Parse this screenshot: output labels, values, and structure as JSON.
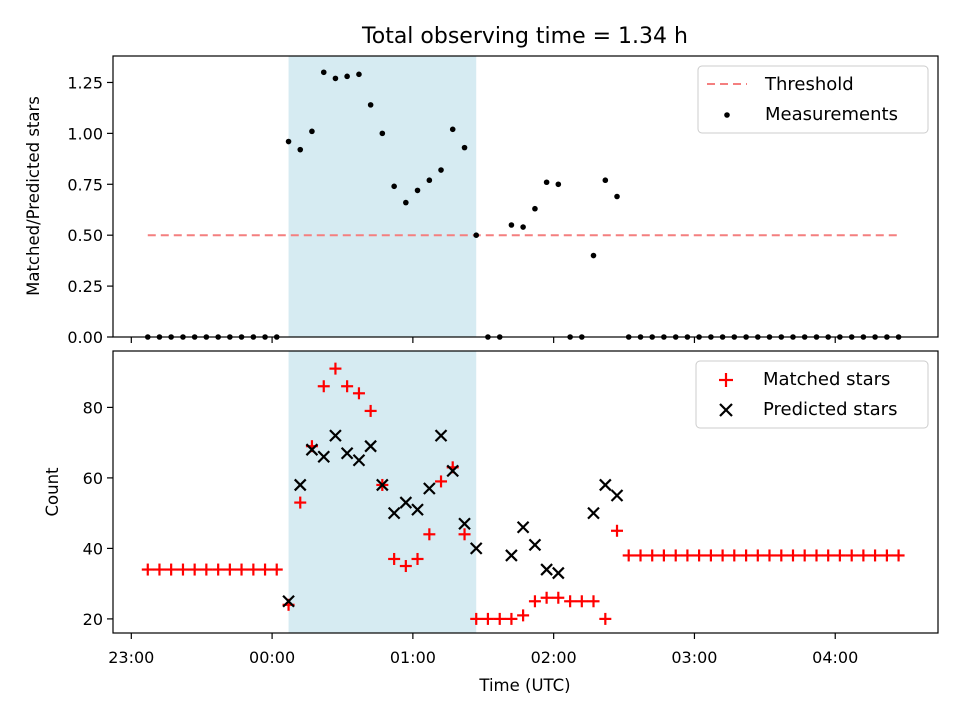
{
  "chart_data": {
    "title": "Total observing time = 1.34 h",
    "xlabel": "Time (UTC)",
    "x_ticks": [
      "23:00",
      "00:00",
      "01:00",
      "02:00",
      "03:00",
      "04:00"
    ],
    "x_tick_hours": [
      23,
      24,
      25,
      26,
      27,
      28
    ],
    "x_range_hours": [
      22.87,
      28.73
    ],
    "highlight_span_hours": [
      24.117,
      25.45
    ],
    "x_hours": [
      23.117,
      23.2,
      23.283,
      23.367,
      23.45,
      23.533,
      23.617,
      23.7,
      23.783,
      23.867,
      23.95,
      24.033,
      24.117,
      24.2,
      24.283,
      24.367,
      24.45,
      24.533,
      24.617,
      24.7,
      24.783,
      24.867,
      24.95,
      25.033,
      25.117,
      25.2,
      25.283,
      25.367,
      25.45,
      25.533,
      25.617,
      25.7,
      25.783,
      25.867,
      25.95,
      26.033,
      26.117,
      26.2,
      26.283,
      26.367,
      26.45,
      26.533,
      26.617,
      26.7,
      26.783,
      26.867,
      26.95,
      27.033,
      27.117,
      27.2,
      27.283,
      27.367,
      27.45,
      27.533,
      27.617,
      27.7,
      27.783,
      27.867,
      27.95,
      28.033,
      28.117,
      28.2,
      28.283,
      28.367,
      28.45
    ],
    "panels": [
      {
        "type": "scatter",
        "ylabel": "Matched/Predicted stars",
        "ylim": [
          0,
          1.38
        ],
        "y_ticks": [
          "0.00",
          "0.25",
          "0.50",
          "0.75",
          "1.00",
          "1.25"
        ],
        "y_tick_values": [
          0,
          0.25,
          0.5,
          0.75,
          1.0,
          1.25
        ],
        "legend_position": "top-right",
        "threshold": {
          "name": "Threshold",
          "value": 0.5,
          "color": "#f47f7f"
        },
        "series": [
          {
            "name": "Measurements",
            "color": "#000000",
            "values": [
              0,
              0,
              0,
              0,
              0,
              0,
              0,
              0,
              0,
              0,
              0,
              0,
              0.96,
              0.92,
              1.01,
              1.3,
              1.27,
              1.28,
              1.29,
              1.14,
              1.0,
              0.74,
              0.66,
              0.72,
              0.77,
              0.82,
              1.02,
              0.93,
              0.5,
              0,
              0,
              0.55,
              0.54,
              0.63,
              0.76,
              0.75,
              0,
              0,
              0.4,
              0.77,
              0.69,
              0,
              0,
              0,
              0,
              0,
              0,
              0,
              0,
              0,
              0,
              0,
              0,
              0,
              0,
              0,
              0,
              0,
              0,
              0,
              0,
              0,
              0,
              0,
              0
            ]
          }
        ]
      },
      {
        "type": "scatter",
        "ylabel": "Count",
        "ylim": [
          16,
          96
        ],
        "y_ticks": [
          "20",
          "40",
          "60",
          "80"
        ],
        "y_tick_values": [
          20,
          40,
          60,
          80
        ],
        "legend_position": "top-right",
        "series": [
          {
            "name": "Matched stars",
            "color": "#ff0000",
            "marker": "plus",
            "values": [
              34,
              34,
              34,
              34,
              34,
              34,
              34,
              34,
              34,
              34,
              34,
              34,
              24,
              53,
              69,
              86,
              91,
              86,
              84,
              79,
              58,
              37,
              35,
              37,
              44,
              59,
              63,
              44,
              20,
              20,
              20,
              20,
              21,
              25,
              26,
              26,
              25,
              25,
              25,
              20,
              45,
              38,
              38,
              38,
              38,
              38,
              38,
              38,
              38,
              38,
              38,
              38,
              38,
              38,
              38,
              38,
              38,
              38,
              38,
              38,
              38,
              38,
              38,
              38,
              38
            ]
          },
          {
            "name": "Predicted stars",
            "color": "#000000",
            "marker": "x",
            "values": [
              null,
              null,
              null,
              null,
              null,
              null,
              null,
              null,
              null,
              null,
              null,
              null,
              25,
              58,
              68,
              66,
              72,
              67,
              65,
              69,
              58,
              50,
              53,
              51,
              57,
              72,
              62,
              47,
              40,
              null,
              null,
              38,
              46,
              41,
              34,
              33,
              null,
              null,
              50,
              58,
              55,
              null,
              null,
              null,
              null,
              null,
              null,
              null,
              null,
              null,
              null,
              null,
              null,
              null,
              null,
              null,
              null,
              null,
              null,
              null,
              null,
              null,
              null,
              null,
              null
            ]
          }
        ]
      }
    ]
  },
  "colors": {
    "highlight": "#add8e6",
    "threshold": "#f47f7f",
    "matched": "#ff0000",
    "predicted": "#000000"
  }
}
